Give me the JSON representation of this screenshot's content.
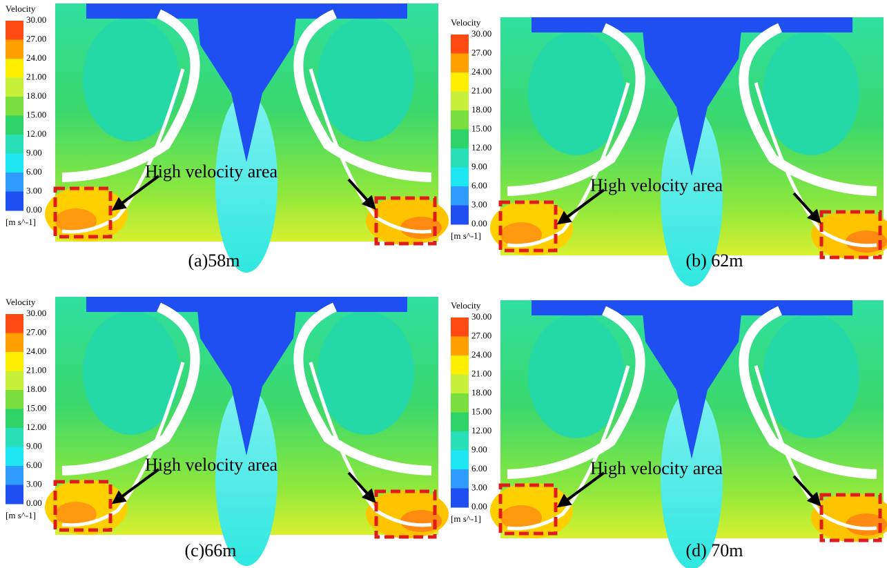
{
  "panels": [
    {
      "legend": {
        "title": "Velocity",
        "labels": [
          "30.00",
          "27.00",
          "24.00",
          "21.00",
          "18.00",
          "15.00",
          "12.00",
          "9.00",
          "6.00",
          "3.00",
          "0.00"
        ],
        "unit": "[m s^-1]"
      },
      "annotation": "High velocity area",
      "caption": "(a)58m"
    },
    {
      "legend": {
        "title": "Velocity",
        "labels": [
          "30.00",
          "27.00",
          "24.00",
          "21.00",
          "18.00",
          "15.00",
          "12.00",
          "9.00",
          "6.00",
          "3.00",
          "0.00"
        ],
        "unit": "[m s^-1]"
      },
      "annotation": "High velocity area",
      "caption": "(b) 62m"
    },
    {
      "legend": {
        "title": "Velocity",
        "labels": [
          "30.00",
          "27.00",
          "24.00",
          "21.00",
          "18.00",
          "15.00",
          "12.00",
          "9.00",
          "6.00",
          "3.00",
          "0.00"
        ],
        "unit": "[m s^-1]"
      },
      "annotation": "High velocity area",
      "caption": "(c)66m"
    },
    {
      "legend": {
        "title": "Velocity",
        "labels": [
          "30.00",
          "27.00",
          "24.00",
          "21.00",
          "18.00",
          "15.00",
          "12.00",
          "9.00",
          "6.00",
          "3.00",
          "0.00"
        ],
        "unit": "[m s^-1]"
      },
      "annotation": "High velocity area",
      "caption": "(d) 70m"
    }
  ]
}
